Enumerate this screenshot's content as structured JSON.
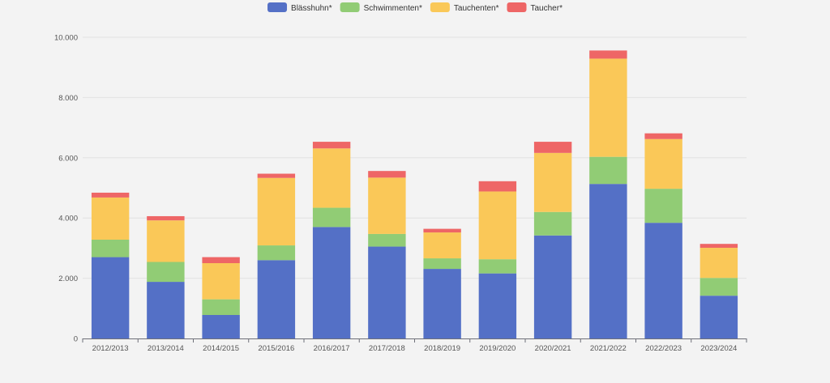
{
  "chart_data": {
    "type": "bar",
    "stacked": true,
    "categories": [
      "2012/2013",
      "2013/2014",
      "2014/2015",
      "2015/2016",
      "2016/2017",
      "2017/2018",
      "2018/2019",
      "2019/2020",
      "2020/2021",
      "2021/2022",
      "2022/2023",
      "2023/2024"
    ],
    "series": [
      {
        "name": "Blässhuhn*",
        "color": "#5470c6",
        "values": [
          2700,
          1880,
          780,
          2600,
          3700,
          3050,
          2310,
          2160,
          3420,
          5130,
          3840,
          1420
        ]
      },
      {
        "name": "Schwimmenten*",
        "color": "#91cc75",
        "values": [
          580,
          660,
          520,
          490,
          640,
          420,
          350,
          470,
          780,
          900,
          1130,
          590
        ]
      },
      {
        "name": "Tauchenten*",
        "color": "#fac858",
        "values": [
          1400,
          1380,
          1200,
          2240,
          1970,
          1870,
          860,
          2250,
          1960,
          3260,
          1650,
          1000
        ]
      },
      {
        "name": "Taucher*",
        "color": "#ee6666",
        "values": [
          160,
          140,
          200,
          140,
          220,
          220,
          120,
          340,
          370,
          270,
          190,
          130
        ]
      }
    ],
    "yticks": [
      "0",
      "2.000",
      "4.000",
      "6.000",
      "8.000",
      "10.000"
    ],
    "ylim": [
      0,
      10000
    ],
    "grid": true,
    "legend_position": "top-center"
  }
}
